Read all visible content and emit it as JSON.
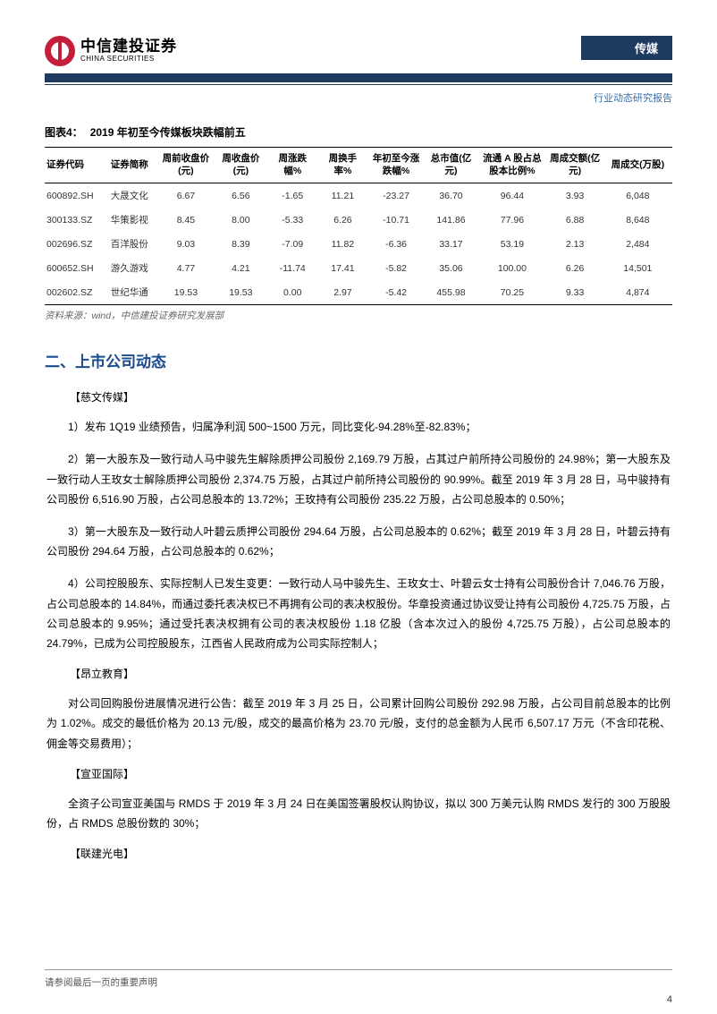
{
  "header": {
    "logo_cn": "中信建投证券",
    "logo_en": "CHINA SECURITIES",
    "category": "传媒",
    "subtitle": "行业动态研究报告"
  },
  "table": {
    "title_prefix": "图表4：",
    "title_text": "2019 年初至今传媒板块跌幅前五",
    "columns": [
      "证券代码",
      "证券简称",
      "周前收盘价(元)",
      "周收盘价(元)",
      "周涨跌幅%",
      "周换手率%",
      "年初至今涨跌幅%",
      "总市值(亿元)",
      "流通 A 股占总股本比例%",
      "周成交额(亿元)",
      "周成交(万股)"
    ],
    "col_widths": [
      "9%",
      "9%",
      "9%",
      "8.5%",
      "8%",
      "8%",
      "9%",
      "8.5%",
      "11%",
      "9%",
      "11%"
    ],
    "rows": [
      [
        "600892.SH",
        "大晟文化",
        "6.67",
        "6.56",
        "-1.65",
        "11.21",
        "-23.27",
        "36.70",
        "96.44",
        "3.93",
        "6,048"
      ],
      [
        "300133.SZ",
        "华策影视",
        "8.45",
        "8.00",
        "-5.33",
        "6.26",
        "-10.71",
        "141.86",
        "77.96",
        "6.88",
        "8,648"
      ],
      [
        "002696.SZ",
        "百洋股份",
        "9.03",
        "8.39",
        "-7.09",
        "11.82",
        "-6.36",
        "33.17",
        "53.19",
        "2.13",
        "2,484"
      ],
      [
        "600652.SH",
        "游久游戏",
        "4.77",
        "4.21",
        "-11.74",
        "17.41",
        "-5.82",
        "35.06",
        "100.00",
        "6.26",
        "14,501"
      ],
      [
        "002602.SZ",
        "世纪华通",
        "19.53",
        "19.53",
        "0.00",
        "2.97",
        "-5.42",
        "455.98",
        "70.25",
        "9.33",
        "4,874"
      ]
    ],
    "source": "资料来源：wind，中信建投证券研究发展部"
  },
  "section": {
    "heading": "二、上市公司动态",
    "items": [
      {
        "company": "【慈文传媒】",
        "paras": [
          "1）发布 1Q19 业绩预告，归属净利润 500~1500 万元，同比变化-94.28%至-82.83%；",
          "2）第一大股东及一致行动人马中骏先生解除质押公司股份 2,169.79 万股，占其过户前所持公司股份的 24.98%；第一大股东及一致行动人王玫女士解除质押公司股份 2,374.75 万股，占其过户前所持公司股份的 90.99%。截至 2019 年 3 月 28 日，马中骏持有公司股份 6,516.90 万股，占公司总股本的 13.72%；王玫持有公司股份 235.22 万股，占公司总股本的 0.50%；",
          "3）第一大股东及一致行动人叶碧云质押公司股份 294.64 万股，占公司总股本的 0.62%；截至 2019 年 3 月 28 日，叶碧云持有公司股份 294.64 万股，占公司总股本的 0.62%；",
          "4）公司控股股东、实际控制人已发生变更：一致行动人马中骏先生、王玫女士、叶碧云女士持有公司股份合计 7,046.76 万股，占公司总股本的 14.84%，而通过委托表决权已不再拥有公司的表决权股份。华章投资通过协议受让持有公司股份 4,725.75 万股，占公司总股本的 9.95%；通过受托表决权拥有公司的表决权股份 1.18 亿股（含本次过入的股份 4,725.75 万股），占公司总股本的 24.79%，已成为公司控股股东，江西省人民政府成为公司实际控制人；"
        ]
      },
      {
        "company": "【昂立教育】",
        "paras": [
          "对公司回购股份进展情况进行公告：截至 2019 年 3 月 25 日，公司累计回购公司股份 292.98 万股，占公司目前总股本的比例为 1.02%。成交的最低价格为 20.13 元/股，成交的最高价格为 23.70 元/股，支付的总金额为人民币 6,507.17 万元（不含印花税、佣金等交易费用）；"
        ]
      },
      {
        "company": "【宣亚国际】",
        "paras": [
          "全资子公司宣亚美国与 RMDS 于 2019 年 3 月 24 日在美国签署股权认购协议，拟以 300 万美元认购 RMDS 发行的 300 万股股份，占 RMDS 总股份数的 30%；"
        ]
      },
      {
        "company": "【联建光电】",
        "paras": []
      }
    ]
  },
  "footer": {
    "disclaimer": "请参阅最后一页的重要声明",
    "page_num": "4"
  },
  "colors": {
    "brand_red": "#c41e3a",
    "brand_navy": "#1f3a5f",
    "heading_blue": "#1a4b8c",
    "subtitle_blue": "#3a6fa8",
    "text": "#333333",
    "border": "#000000"
  }
}
